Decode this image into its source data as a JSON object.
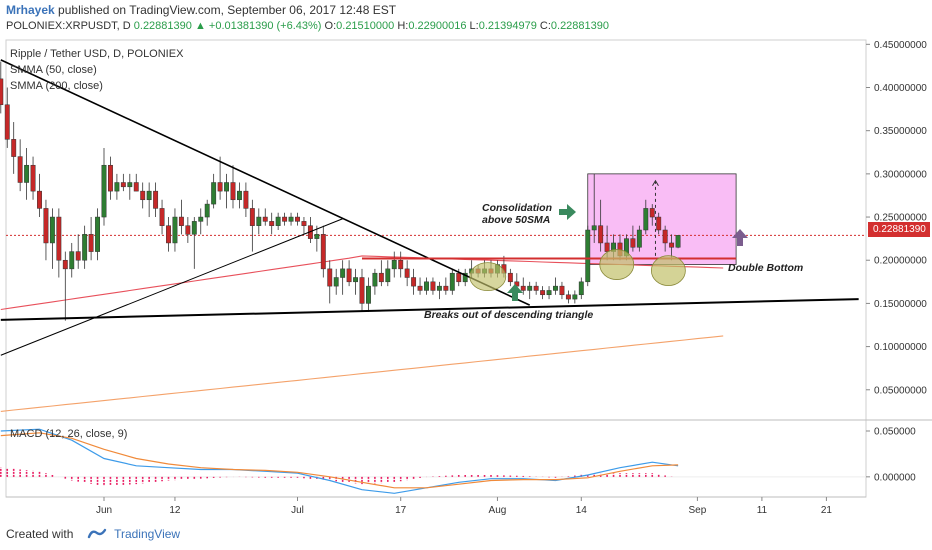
{
  "header": {
    "author": "Mrhayek",
    "published": "published on TradingView.com, September 06, 2017 12:48 EST"
  },
  "ohlc": {
    "symbol": "POLONIEX:XRPUSDT, D",
    "last": "0.22881390",
    "change": "+0.01381390 (+6.43%)",
    "o_label": "O:",
    "o": "0.21510000",
    "h_label": "H:",
    "h": "0.22900016",
    "l_label": "L:",
    "l": "0.21394979",
    "c_label": "C:",
    "c": "0.22881390"
  },
  "legend": {
    "title": "Ripple / Tether USD, D, POLONIEX",
    "sma50": "SMMA (50, close)",
    "sma200": "SMMA (200, close)",
    "macd": "MACD (12, 26, close, 9)"
  },
  "last_price_tag": "0.22881390",
  "annotations": {
    "consolidation_line1": "Consolidation",
    "consolidation_line2": "above 50SMA",
    "double_bottom": "Double Bottom",
    "breakout": "Breaks out of descending triangle"
  },
  "footer": {
    "created_with": "Created with",
    "brand": "TradingView"
  },
  "colors": {
    "up": "#2e7d32",
    "down": "#c62828",
    "sma50": "#e8505b",
    "sma200": "#f4a26a",
    "trend": "#000000",
    "box": "#f06cf0",
    "ellipse": "#c2c06a",
    "arrow_green": "#3a8a5e",
    "arrow_purple": "#7b5d8e",
    "macd": "#3d9be9",
    "signal": "#f08a3a",
    "hist": "#e91e63"
  },
  "chart_data": [
    {
      "type": "candlestick",
      "title": "Ripple / Tether USD, D, POLONIEX",
      "x_tick_labels": [
        "Jun",
        "12",
        "Jul",
        "17",
        "Aug",
        "14",
        "Sep",
        "11",
        "21"
      ],
      "x_tick_days": [
        0,
        11,
        30,
        46,
        61,
        74,
        92,
        102,
        112
      ],
      "y_tick_labels": [
        "0.45000000",
        "0.40000000",
        "0.35000000",
        "0.30000000",
        "0.25000000",
        "0.20000000",
        "0.15000000",
        "0.10000000",
        "0.05000000"
      ],
      "y_ticks": [
        0.45,
        0.4,
        0.35,
        0.3,
        0.25,
        0.2,
        0.15,
        0.1,
        0.05
      ],
      "ylim": [
        0.015,
        0.455
      ],
      "last_price": 0.2288139,
      "candles": [
        {
          "d": -16,
          "o": 0.41,
          "h": 0.43,
          "l": 0.37,
          "c": 0.38
        },
        {
          "d": -15,
          "o": 0.38,
          "h": 0.4,
          "l": 0.33,
          "c": 0.34
        },
        {
          "d": -14,
          "o": 0.34,
          "h": 0.36,
          "l": 0.3,
          "c": 0.32
        },
        {
          "d": -13,
          "o": 0.32,
          "h": 0.34,
          "l": 0.28,
          "c": 0.29
        },
        {
          "d": -12,
          "o": 0.29,
          "h": 0.33,
          "l": 0.27,
          "c": 0.31
        },
        {
          "d": -11,
          "o": 0.31,
          "h": 0.32,
          "l": 0.27,
          "c": 0.28
        },
        {
          "d": -10,
          "o": 0.28,
          "h": 0.3,
          "l": 0.25,
          "c": 0.26
        },
        {
          "d": -9,
          "o": 0.26,
          "h": 0.27,
          "l": 0.2,
          "c": 0.22
        },
        {
          "d": -8,
          "o": 0.22,
          "h": 0.26,
          "l": 0.19,
          "c": 0.25
        },
        {
          "d": -7,
          "o": 0.25,
          "h": 0.26,
          "l": 0.18,
          "c": 0.2
        },
        {
          "d": -6,
          "o": 0.2,
          "h": 0.21,
          "l": 0.13,
          "c": 0.19
        },
        {
          "d": -5,
          "o": 0.19,
          "h": 0.22,
          "l": 0.18,
          "c": 0.21
        },
        {
          "d": -4,
          "o": 0.21,
          "h": 0.23,
          "l": 0.19,
          "c": 0.2
        },
        {
          "d": -3,
          "o": 0.2,
          "h": 0.24,
          "l": 0.19,
          "c": 0.23
        },
        {
          "d": -2,
          "o": 0.23,
          "h": 0.25,
          "l": 0.2,
          "c": 0.21
        },
        {
          "d": -1,
          "o": 0.21,
          "h": 0.26,
          "l": 0.2,
          "c": 0.25
        },
        {
          "d": 0,
          "o": 0.25,
          "h": 0.33,
          "l": 0.24,
          "c": 0.31
        },
        {
          "d": 1,
          "o": 0.31,
          "h": 0.32,
          "l": 0.27,
          "c": 0.28
        },
        {
          "d": 2,
          "o": 0.28,
          "h": 0.3,
          "l": 0.27,
          "c": 0.29
        },
        {
          "d": 3,
          "o": 0.29,
          "h": 0.3,
          "l": 0.28,
          "c": 0.285
        },
        {
          "d": 4,
          "o": 0.285,
          "h": 0.3,
          "l": 0.27,
          "c": 0.29
        },
        {
          "d": 5,
          "o": 0.29,
          "h": 0.3,
          "l": 0.28,
          "c": 0.28
        },
        {
          "d": 6,
          "o": 0.28,
          "h": 0.29,
          "l": 0.26,
          "c": 0.27
        },
        {
          "d": 7,
          "o": 0.27,
          "h": 0.29,
          "l": 0.25,
          "c": 0.28
        },
        {
          "d": 8,
          "o": 0.28,
          "h": 0.29,
          "l": 0.25,
          "c": 0.26
        },
        {
          "d": 9,
          "o": 0.26,
          "h": 0.27,
          "l": 0.23,
          "c": 0.24
        },
        {
          "d": 10,
          "o": 0.24,
          "h": 0.25,
          "l": 0.21,
          "c": 0.22
        },
        {
          "d": 11,
          "o": 0.22,
          "h": 0.26,
          "l": 0.21,
          "c": 0.25
        },
        {
          "d": 12,
          "o": 0.25,
          "h": 0.27,
          "l": 0.23,
          "c": 0.24
        },
        {
          "d": 13,
          "o": 0.24,
          "h": 0.25,
          "l": 0.22,
          "c": 0.23
        },
        {
          "d": 14,
          "o": 0.23,
          "h": 0.25,
          "l": 0.19,
          "c": 0.245
        },
        {
          "d": 15,
          "o": 0.245,
          "h": 0.26,
          "l": 0.23,
          "c": 0.25
        },
        {
          "d": 16,
          "o": 0.25,
          "h": 0.27,
          "l": 0.24,
          "c": 0.265
        },
        {
          "d": 17,
          "o": 0.265,
          "h": 0.3,
          "l": 0.26,
          "c": 0.29
        },
        {
          "d": 18,
          "o": 0.29,
          "h": 0.32,
          "l": 0.27,
          "c": 0.28
        },
        {
          "d": 19,
          "o": 0.28,
          "h": 0.3,
          "l": 0.26,
          "c": 0.29
        },
        {
          "d": 20,
          "o": 0.29,
          "h": 0.31,
          "l": 0.26,
          "c": 0.27
        },
        {
          "d": 21,
          "o": 0.27,
          "h": 0.29,
          "l": 0.26,
          "c": 0.28
        },
        {
          "d": 22,
          "o": 0.28,
          "h": 0.29,
          "l": 0.25,
          "c": 0.26
        },
        {
          "d": 23,
          "o": 0.26,
          "h": 0.27,
          "l": 0.21,
          "c": 0.24
        },
        {
          "d": 24,
          "o": 0.24,
          "h": 0.26,
          "l": 0.23,
          "c": 0.25
        },
        {
          "d": 25,
          "o": 0.25,
          "h": 0.26,
          "l": 0.24,
          "c": 0.245
        },
        {
          "d": 26,
          "o": 0.245,
          "h": 0.255,
          "l": 0.23,
          "c": 0.24
        },
        {
          "d": 27,
          "o": 0.24,
          "h": 0.255,
          "l": 0.235,
          "c": 0.25
        },
        {
          "d": 28,
          "o": 0.25,
          "h": 0.255,
          "l": 0.24,
          "c": 0.245
        },
        {
          "d": 29,
          "o": 0.245,
          "h": 0.255,
          "l": 0.24,
          "c": 0.25
        },
        {
          "d": 30,
          "o": 0.25,
          "h": 0.255,
          "l": 0.24,
          "c": 0.245
        },
        {
          "d": 31,
          "o": 0.245,
          "h": 0.25,
          "l": 0.23,
          "c": 0.24
        },
        {
          "d": 32,
          "o": 0.24,
          "h": 0.25,
          "l": 0.22,
          "c": 0.225
        },
        {
          "d": 33,
          "o": 0.225,
          "h": 0.24,
          "l": 0.21,
          "c": 0.23
        },
        {
          "d": 34,
          "o": 0.23,
          "h": 0.24,
          "l": 0.18,
          "c": 0.19
        },
        {
          "d": 35,
          "o": 0.19,
          "h": 0.2,
          "l": 0.15,
          "c": 0.17
        },
        {
          "d": 36,
          "o": 0.17,
          "h": 0.19,
          "l": 0.16,
          "c": 0.18
        },
        {
          "d": 37,
          "o": 0.18,
          "h": 0.2,
          "l": 0.16,
          "c": 0.19
        },
        {
          "d": 38,
          "o": 0.19,
          "h": 0.2,
          "l": 0.17,
          "c": 0.175
        },
        {
          "d": 39,
          "o": 0.175,
          "h": 0.19,
          "l": 0.16,
          "c": 0.18
        },
        {
          "d": 40,
          "o": 0.18,
          "h": 0.19,
          "l": 0.14,
          "c": 0.15
        },
        {
          "d": 41,
          "o": 0.15,
          "h": 0.18,
          "l": 0.14,
          "c": 0.17
        },
        {
          "d": 42,
          "o": 0.17,
          "h": 0.19,
          "l": 0.16,
          "c": 0.185
        },
        {
          "d": 43,
          "o": 0.185,
          "h": 0.2,
          "l": 0.17,
          "c": 0.175
        },
        {
          "d": 44,
          "o": 0.175,
          "h": 0.2,
          "l": 0.17,
          "c": 0.19
        },
        {
          "d": 45,
          "o": 0.19,
          "h": 0.21,
          "l": 0.18,
          "c": 0.2
        },
        {
          "d": 46,
          "o": 0.2,
          "h": 0.21,
          "l": 0.18,
          "c": 0.19
        },
        {
          "d": 47,
          "o": 0.19,
          "h": 0.2,
          "l": 0.17,
          "c": 0.18
        },
        {
          "d": 48,
          "o": 0.18,
          "h": 0.19,
          "l": 0.16,
          "c": 0.17
        },
        {
          "d": 49,
          "o": 0.17,
          "h": 0.18,
          "l": 0.16,
          "c": 0.165
        },
        {
          "d": 50,
          "o": 0.165,
          "h": 0.18,
          "l": 0.16,
          "c": 0.175
        },
        {
          "d": 51,
          "o": 0.175,
          "h": 0.18,
          "l": 0.16,
          "c": 0.165
        },
        {
          "d": 52,
          "o": 0.165,
          "h": 0.175,
          "l": 0.155,
          "c": 0.17
        },
        {
          "d": 53,
          "o": 0.17,
          "h": 0.18,
          "l": 0.16,
          "c": 0.165
        },
        {
          "d": 54,
          "o": 0.165,
          "h": 0.19,
          "l": 0.16,
          "c": 0.185
        },
        {
          "d": 55,
          "o": 0.185,
          "h": 0.19,
          "l": 0.17,
          "c": 0.175
        },
        {
          "d": 56,
          "o": 0.175,
          "h": 0.19,
          "l": 0.17,
          "c": 0.185
        },
        {
          "d": 57,
          "o": 0.185,
          "h": 0.2,
          "l": 0.18,
          "c": 0.19
        },
        {
          "d": 58,
          "o": 0.19,
          "h": 0.195,
          "l": 0.18,
          "c": 0.185
        },
        {
          "d": 59,
          "o": 0.185,
          "h": 0.2,
          "l": 0.18,
          "c": 0.19
        },
        {
          "d": 60,
          "o": 0.19,
          "h": 0.2,
          "l": 0.18,
          "c": 0.185
        },
        {
          "d": 61,
          "o": 0.185,
          "h": 0.2,
          "l": 0.18,
          "c": 0.195
        },
        {
          "d": 62,
          "o": 0.195,
          "h": 0.205,
          "l": 0.18,
          "c": 0.185
        },
        {
          "d": 63,
          "o": 0.185,
          "h": 0.19,
          "l": 0.17,
          "c": 0.175
        },
        {
          "d": 64,
          "o": 0.175,
          "h": 0.185,
          "l": 0.165,
          "c": 0.17
        },
        {
          "d": 65,
          "o": 0.17,
          "h": 0.18,
          "l": 0.16,
          "c": 0.165
        },
        {
          "d": 66,
          "o": 0.165,
          "h": 0.175,
          "l": 0.155,
          "c": 0.17
        },
        {
          "d": 67,
          "o": 0.17,
          "h": 0.175,
          "l": 0.16,
          "c": 0.165
        },
        {
          "d": 68,
          "o": 0.165,
          "h": 0.17,
          "l": 0.155,
          "c": 0.16
        },
        {
          "d": 69,
          "o": 0.16,
          "h": 0.17,
          "l": 0.155,
          "c": 0.165
        },
        {
          "d": 70,
          "o": 0.165,
          "h": 0.18,
          "l": 0.16,
          "c": 0.17
        },
        {
          "d": 71,
          "o": 0.17,
          "h": 0.175,
          "l": 0.155,
          "c": 0.16
        },
        {
          "d": 72,
          "o": 0.16,
          "h": 0.165,
          "l": 0.15,
          "c": 0.155
        },
        {
          "d": 73,
          "o": 0.155,
          "h": 0.165,
          "l": 0.15,
          "c": 0.16
        },
        {
          "d": 74,
          "o": 0.16,
          "h": 0.18,
          "l": 0.155,
          "c": 0.175
        },
        {
          "d": 75,
          "o": 0.175,
          "h": 0.24,
          "l": 0.17,
          "c": 0.235
        },
        {
          "d": 76,
          "o": 0.235,
          "h": 0.3,
          "l": 0.22,
          "c": 0.24
        },
        {
          "d": 77,
          "o": 0.24,
          "h": 0.27,
          "l": 0.21,
          "c": 0.22
        },
        {
          "d": 78,
          "o": 0.22,
          "h": 0.24,
          "l": 0.2,
          "c": 0.21
        },
        {
          "d": 79,
          "o": 0.21,
          "h": 0.23,
          "l": 0.2,
          "c": 0.22
        },
        {
          "d": 80,
          "o": 0.22,
          "h": 0.23,
          "l": 0.2,
          "c": 0.205
        },
        {
          "d": 81,
          "o": 0.205,
          "h": 0.23,
          "l": 0.2,
          "c": 0.225
        },
        {
          "d": 82,
          "o": 0.225,
          "h": 0.24,
          "l": 0.21,
          "c": 0.215
        },
        {
          "d": 83,
          "o": 0.215,
          "h": 0.24,
          "l": 0.21,
          "c": 0.235
        },
        {
          "d": 84,
          "o": 0.235,
          "h": 0.27,
          "l": 0.23,
          "c": 0.26
        },
        {
          "d": 85,
          "o": 0.26,
          "h": 0.265,
          "l": 0.24,
          "c": 0.25
        },
        {
          "d": 86,
          "o": 0.25,
          "h": 0.255,
          "l": 0.23,
          "c": 0.235
        },
        {
          "d": 87,
          "o": 0.235,
          "h": 0.24,
          "l": 0.21,
          "c": 0.22
        },
        {
          "d": 88,
          "o": 0.22,
          "h": 0.23,
          "l": 0.2,
          "c": 0.215
        },
        {
          "d": 89,
          "o": 0.215,
          "h": 0.229,
          "l": 0.2139,
          "c": 0.2288
        }
      ]
    },
    {
      "type": "line",
      "title": "MACD (12, 26, close, 9)",
      "y_tick_labels": [
        "0.050000",
        "0.000000"
      ],
      "y_ticks": [
        0.05,
        0.0
      ],
      "ylim": [
        -0.022,
        0.062
      ],
      "x": [
        -16,
        -10,
        -5,
        0,
        5,
        10,
        15,
        20,
        25,
        30,
        35,
        40,
        45,
        50,
        55,
        60,
        65,
        70,
        75,
        80,
        85,
        89
      ],
      "series": [
        {
          "id": "macd",
          "values": [
            0.05,
            0.052,
            0.04,
            0.02,
            0.012,
            0.01,
            0.008,
            0.008,
            0.006,
            0.004,
            -0.004,
            -0.014,
            -0.018,
            -0.012,
            -0.006,
            -0.002,
            -0.002,
            -0.004,
            0.002,
            0.01,
            0.016,
            0.012
          ]
        },
        {
          "id": "signal",
          "values": [
            0.045,
            0.048,
            0.042,
            0.03,
            0.02,
            0.014,
            0.01,
            0.008,
            0.007,
            0.005,
            0.0,
            -0.006,
            -0.012,
            -0.012,
            -0.008,
            -0.004,
            -0.003,
            -0.003,
            -0.001,
            0.006,
            0.012,
            0.013
          ]
        }
      ],
      "histogram": [
        0.01,
        0.006,
        -0.004,
        -0.01,
        -0.008,
        -0.004,
        -0.002,
        0.0,
        -0.001,
        -0.001,
        -0.004,
        -0.008,
        -0.006,
        0.0,
        0.002,
        0.002,
        0.001,
        -0.001,
        0.003,
        0.004,
        0.004,
        -0.001
      ]
    }
  ]
}
